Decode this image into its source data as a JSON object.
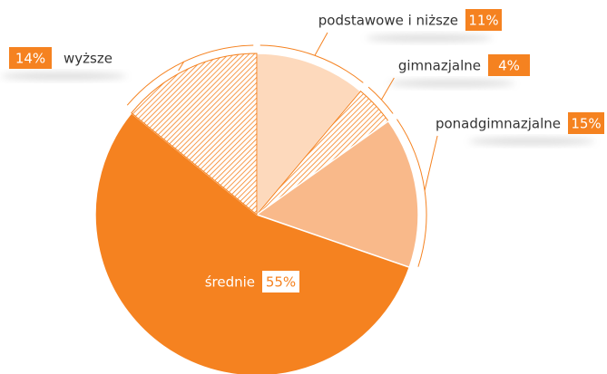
{
  "chart_data": {
    "type": "pie",
    "categories": [
      "podstawowe i niższe",
      "gimnazjalne",
      "ponadgimnazjalne",
      "średnie",
      "wyższe"
    ],
    "values": [
      11,
      4,
      15,
      55,
      14
    ],
    "value_labels": [
      "11%",
      "4%",
      "15%",
      "55%",
      "14%"
    ],
    "colors": [
      "#fdd9bc",
      "#f58220",
      "#f9b98a",
      "#f58220",
      "#f58220"
    ],
    "hatched": [
      false,
      true,
      false,
      false,
      true
    ]
  }
}
